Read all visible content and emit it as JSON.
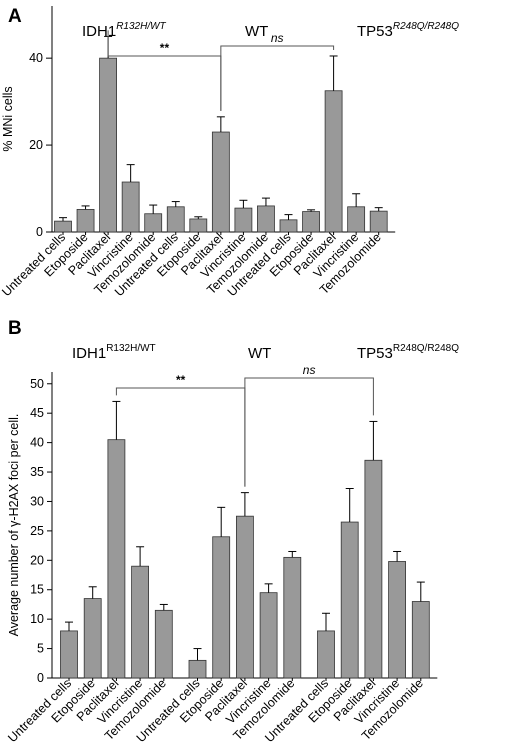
{
  "colors": {
    "bar_fill": "#999999",
    "bar_stroke": "#333333",
    "bracket": "#555555"
  },
  "chart_data": [
    {
      "type": "bar",
      "panel": "A",
      "groups": [
        "IDH1",
        "WT",
        "TP53"
      ],
      "group_superscripts": [
        "R132H/WT",
        "",
        "R248Q/R248Q"
      ],
      "categories": [
        "Untreated cells",
        "Etoposide",
        "Paclitaxel",
        "Vincristine",
        "Temozolomide",
        "Untreated cells",
        "Etoposide",
        "Paclitaxel",
        "Vincristine",
        "Temozolomide",
        "Untreated cells",
        "Etoposide",
        "Paclitaxel",
        "Vincristine",
        "Temozolomide"
      ],
      "values": [
        2.5,
        5.2,
        40,
        11.5,
        4.2,
        5.8,
        3.0,
        23,
        5.5,
        6.0,
        2.8,
        4.7,
        32.5,
        5.8,
        4.8
      ],
      "errors": [
        0.8,
        0.8,
        5.0,
        4.0,
        2.0,
        1.2,
        0.5,
        3.5,
        1.8,
        1.8,
        1.2,
        0.4,
        8.0,
        3.0,
        0.8
      ],
      "ylabel": "% MNi cells",
      "ylim": [
        0,
        52
      ],
      "yticks": [
        0,
        20,
        40
      ],
      "annotations": [
        {
          "text": "**",
          "from": 2,
          "to": 7,
          "style": "bold"
        },
        {
          "text": "ns",
          "from": 7,
          "to": 12,
          "style": "italic"
        }
      ]
    },
    {
      "type": "bar",
      "panel": "B",
      "groups": [
        "IDH1",
        "WT",
        "TP53"
      ],
      "group_superscripts": [
        "R132H/WT",
        "",
        "R248Q/R248Q"
      ],
      "categories": [
        "Untreated cells",
        "Etoposide",
        "Paclitaxel",
        "Vincristine",
        "Temozolomide",
        "Untreated cells",
        "Etoposide",
        "Paclitaxel",
        "Vincristine",
        "Temozolomide",
        "Untreated cells",
        "Etoposide",
        "Paclitaxel",
        "Vincristine",
        "Temozolomide"
      ],
      "values": [
        8,
        13.5,
        40.5,
        19,
        11.5,
        3,
        24,
        27.5,
        14.5,
        20.5,
        8,
        26.5,
        37,
        19.8,
        13
      ],
      "errors": [
        1.5,
        2.0,
        6.5,
        3.3,
        1.0,
        2.0,
        5.0,
        4.0,
        1.5,
        1.0,
        3.0,
        5.7,
        6.6,
        1.7,
        3.3
      ],
      "ylabel": "Average number of γ-H2AX foci per cell.",
      "ylim": [
        0,
        52
      ],
      "yticks": [
        0,
        5,
        10,
        15,
        20,
        25,
        30,
        35,
        40,
        45,
        50
      ],
      "annotations": [
        {
          "text": "**",
          "from": 2,
          "to": 7,
          "style": "bold"
        },
        {
          "text": "ns",
          "from": 7,
          "to": 12,
          "style": "italic"
        }
      ]
    }
  ]
}
